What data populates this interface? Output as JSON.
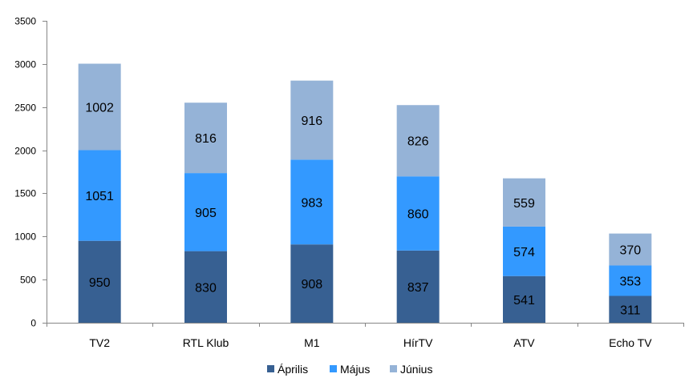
{
  "chart_data": {
    "type": "bar",
    "stacked": true,
    "categories": [
      "TV2",
      "RTL Klub",
      "M1",
      "HírTV",
      "ATV",
      "Echo TV"
    ],
    "series": [
      {
        "name": "Április",
        "color": "#376092",
        "values": [
          950,
          830,
          908,
          837,
          541,
          311
        ]
      },
      {
        "name": "Május",
        "color": "#3399ff",
        "values": [
          1051,
          905,
          983,
          860,
          574,
          353
        ]
      },
      {
        "name": "Június",
        "color": "#95b3d7",
        "values": [
          1002,
          816,
          916,
          826,
          559,
          370
        ]
      }
    ],
    "yticks": [
      0,
      500,
      1000,
      1500,
      2000,
      2500,
      3000,
      3500
    ],
    "ylim": [
      0,
      3500
    ],
    "grid": false,
    "legend_position": "bottom"
  }
}
